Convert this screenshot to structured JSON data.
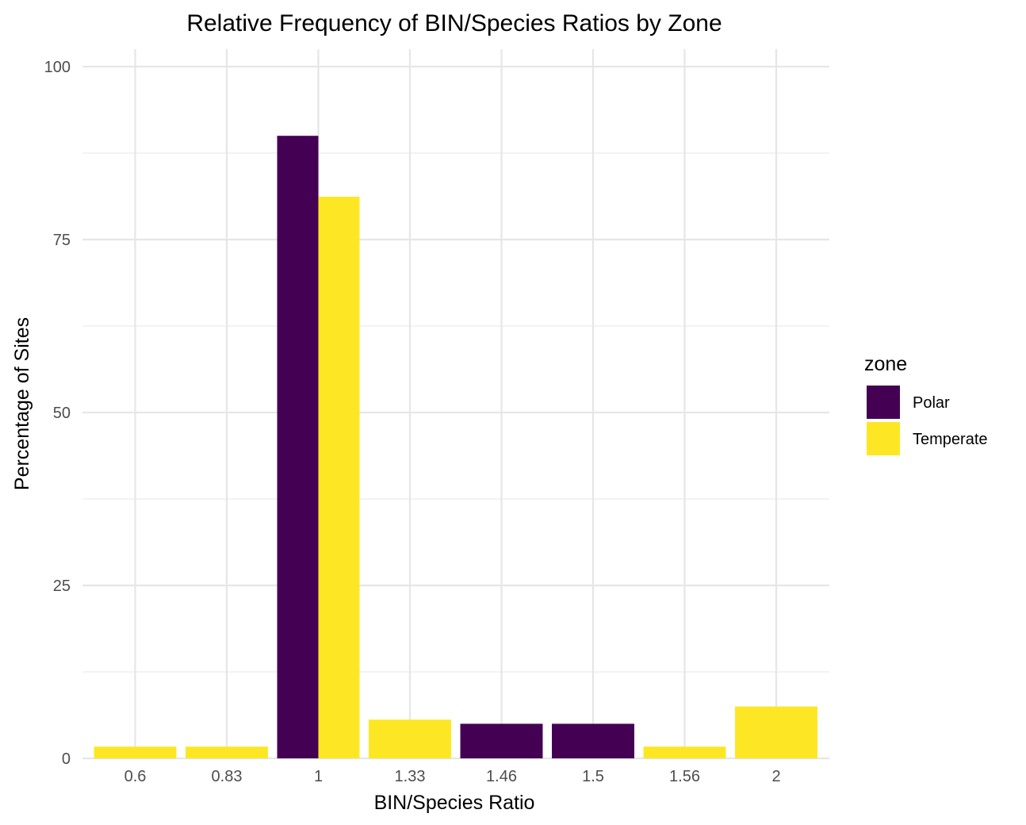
{
  "chart_data": {
    "type": "bar",
    "title": "Relative Frequency of BIN/Species Ratios by Zone",
    "xlabel": "BIN/Species Ratio",
    "ylabel": "Percentage of Sites",
    "categories": [
      "0.6",
      "0.83",
      "1",
      "1.33",
      "1.46",
      "1.5",
      "1.56",
      "2"
    ],
    "yticks": [
      "0",
      "25",
      "50",
      "75",
      "100"
    ],
    "ylim": [
      0,
      100
    ],
    "grid": true,
    "legend": {
      "title": "zone",
      "position": "right"
    },
    "series": [
      {
        "name": "Polar",
        "color": "#440154",
        "values": [
          null,
          null,
          90,
          null,
          5,
          5,
          null,
          null
        ]
      },
      {
        "name": "Temperate",
        "color": "#FDE725",
        "values": [
          1.7,
          1.7,
          81.2,
          5.6,
          null,
          null,
          1.7,
          7.5
        ]
      }
    ]
  }
}
